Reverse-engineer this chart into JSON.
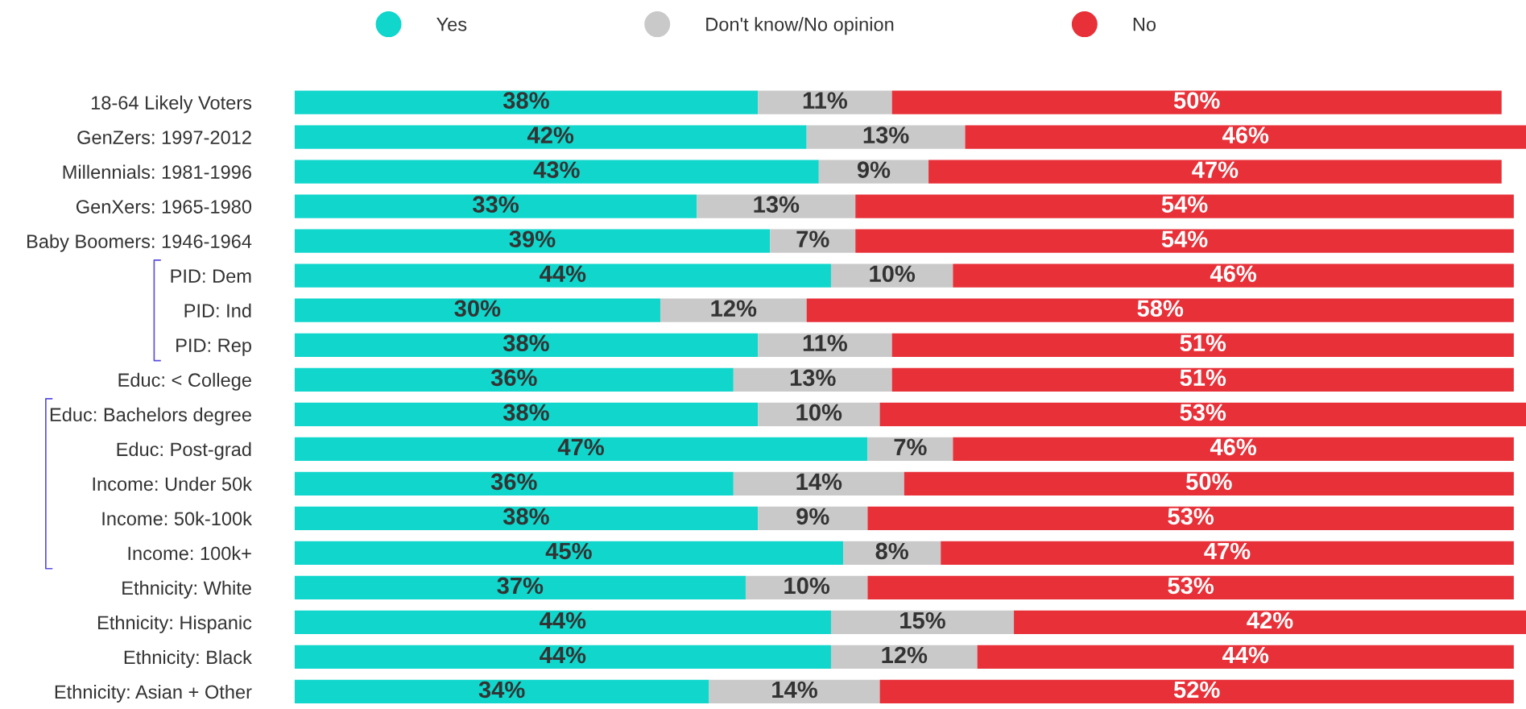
{
  "chart_data": {
    "type": "bar",
    "orientation": "horizontal",
    "stacked": true,
    "legend": "top",
    "marker": "circle",
    "grid": false,
    "categories": [
      "18-64 Likely Voters",
      "GenZers: 1997-2012",
      "Millennials: 1981-1996",
      "GenXers: 1965-1980",
      "Baby Boomers: 1946-1964",
      "PID: Dem",
      "PID: Ind",
      "PID: Rep",
      "Educ: < College",
      "Educ: Bachelors degree",
      "Educ: Post-grad",
      "Income: Under 50k",
      "Income: 50k-100k",
      "Income: 100k+",
      "Ethnicity: White",
      "Ethnicity: Hispanic",
      "Ethnicity: Black",
      "Ethnicity: Asian + Other"
    ],
    "series": [
      {
        "name": "Yes",
        "color": "#10d6cc",
        "values": [
          38,
          42,
          43,
          33,
          39,
          44,
          30,
          38,
          36,
          38,
          47,
          36,
          38,
          45,
          37,
          44,
          44,
          34
        ],
        "value_labels": [
          "38%",
          "42%",
          "43%",
          "33%",
          "39%",
          "44%",
          "30%",
          "38%",
          "36%",
          "38%",
          "47%",
          "36%",
          "38%",
          "45%",
          "37%",
          "44%",
          "44%",
          "34%"
        ]
      },
      {
        "name": "Don't know/No opinion",
        "color": "#c9c9c9",
        "values": [
          11,
          13,
          9,
          13,
          7,
          10,
          12,
          11,
          13,
          10,
          7,
          14,
          9,
          8,
          10,
          15,
          12,
          14
        ],
        "value_labels": [
          "11%",
          "13%",
          "9%",
          "13%",
          "7%",
          "10%",
          "12%",
          "11%",
          "13%",
          "10%",
          "7%",
          "14%",
          "9%",
          "8%",
          "10%",
          "15%",
          "12%",
          "14%"
        ]
      },
      {
        "name": "No",
        "color": "#e83038",
        "values": [
          50,
          46,
          47,
          54,
          54,
          46,
          58,
          51,
          51,
          53,
          46,
          50,
          53,
          47,
          53,
          42,
          44,
          52
        ],
        "value_labels": [
          "50%",
          "46%",
          "47%",
          "54%",
          "54%",
          "46%",
          "58%",
          "51%",
          "51%",
          "53%",
          "46%",
          "50%",
          "53%",
          "47%",
          "53%",
          "42%",
          "44%",
          "52%"
        ]
      }
    ]
  }
}
